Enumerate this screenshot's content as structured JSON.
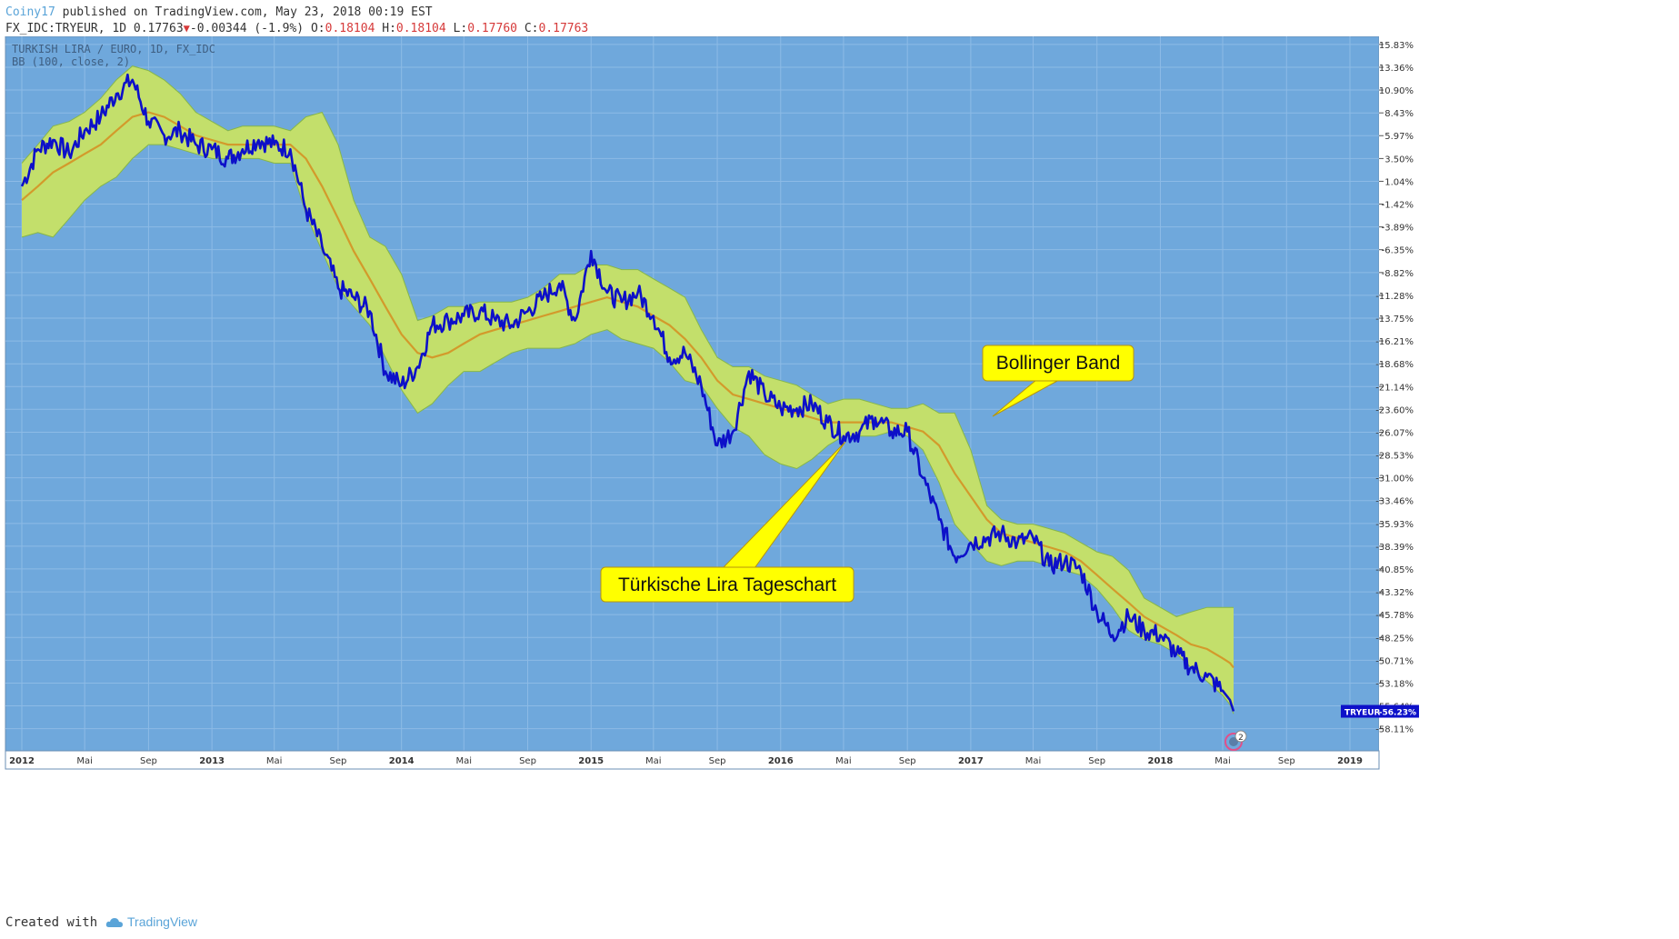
{
  "header": {
    "author": "Coiny17",
    "published_text": "published on TradingView.com, May 23, 2018 00:19 EST",
    "symbol_line": "FX_IDC:TRYEUR, 1D 0.17763",
    "change_text": "-0.00344 (-1.9%)",
    "open_label": "O:",
    "open_value": "0.18104",
    "high_label": "H:",
    "high_value": "0.18104",
    "low_label": "L:",
    "low_value": "0.17760",
    "close_label": "C:",
    "close_value": "0.17763"
  },
  "footer": {
    "created_with": "Created with",
    "brand": "TradingView"
  },
  "colors": {
    "plot_bg": "#6fa8dc",
    "band_fill": "#c3df6b",
    "band_edge": "#86b64a",
    "ma_line": "#d39a2b",
    "price_line": "#0d10c9",
    "grid": "#8dbbe6",
    "callout_fill": "#ffff00",
    "last_price_tag": "#0d10c9"
  },
  "chart_data": {
    "type": "line",
    "title": "TURKISH LIRA / EURO, 1D, FX_IDC",
    "indicator": "BB (100, close, 2)",
    "x_axis_ticks": [
      "2012",
      "Mai",
      "Sep",
      "2013",
      "Mai",
      "Sep",
      "2014",
      "Mai",
      "Sep",
      "2015",
      "Mai",
      "Sep",
      "2016",
      "Mai",
      "Sep",
      "2017",
      "Mai",
      "Sep",
      "2018",
      "Mai",
      "Sep",
      "2019"
    ],
    "y_axis_ticks": [
      "15.83%",
      "13.36%",
      "10.90%",
      "8.43%",
      "5.97%",
      "3.50%",
      "1.04%",
      "-1.42%",
      "-3.89%",
      "-6.35%",
      "-8.82%",
      "-11.28%",
      "-13.75%",
      "-16.21%",
      "-18.68%",
      "-21.14%",
      "-23.60%",
      "-26.07%",
      "-28.53%",
      "-31.00%",
      "-33.46%",
      "-35.93%",
      "-38.39%",
      "-40.85%",
      "-43.32%",
      "-45.78%",
      "-48.25%",
      "-50.71%",
      "-53.18%",
      "-55.64%",
      "-58.11%"
    ],
    "ylim": [
      -60.5,
      16.7
    ],
    "last_value_tag": {
      "label": "TRYEUR",
      "value": "-56.23%"
    },
    "annotations": [
      "Bollinger Band",
      "Türkische Lira Tageschart"
    ],
    "event_marker_count": "2",
    "series": [
      {
        "name": "TRYEUR",
        "x": [
          "2012-01-01",
          "2012-02-01",
          "2012-03-01",
          "2012-04-01",
          "2012-05-01",
          "2012-06-01",
          "2012-07-01",
          "2012-08-01",
          "2012-09-01",
          "2012-10-01",
          "2012-11-01",
          "2012-12-01",
          "2013-01-01",
          "2013-02-01",
          "2013-03-01",
          "2013-04-01",
          "2013-05-01",
          "2013-06-01",
          "2013-07-01",
          "2013-08-01",
          "2013-09-01",
          "2013-10-01",
          "2013-11-01",
          "2013-12-01",
          "2014-01-01",
          "2014-02-01",
          "2014-03-01",
          "2014-04-01",
          "2014-05-01",
          "2014-06-01",
          "2014-07-01",
          "2014-08-01",
          "2014-09-01",
          "2014-10-01",
          "2014-11-01",
          "2014-12-01",
          "2015-01-01",
          "2015-02-01",
          "2015-03-01",
          "2015-04-01",
          "2015-05-01",
          "2015-06-01",
          "2015-07-01",
          "2015-08-01",
          "2015-09-01",
          "2015-10-01",
          "2015-11-01",
          "2015-12-01",
          "2016-01-01",
          "2016-02-01",
          "2016-03-01",
          "2016-04-01",
          "2016-05-01",
          "2016-06-01",
          "2016-07-01",
          "2016-08-01",
          "2016-09-01",
          "2016-10-01",
          "2016-11-01",
          "2016-12-01",
          "2017-01-01",
          "2017-02-01",
          "2017-03-01",
          "2017-04-01",
          "2017-05-01",
          "2017-06-01",
          "2017-07-01",
          "2017-08-01",
          "2017-09-01",
          "2017-10-01",
          "2017-11-01",
          "2017-12-01",
          "2018-01-01",
          "2018-02-01",
          "2018-03-01",
          "2018-04-01",
          "2018-05-01",
          "2018-05-15",
          "2018-05-22"
        ],
        "values": [
          0.5,
          4.5,
          5.5,
          4.0,
          6.5,
          8.0,
          10.5,
          12.0,
          7.5,
          6.0,
          6.5,
          5.0,
          4.5,
          3.5,
          4.5,
          5.5,
          5.0,
          4.5,
          -2.0,
          -6.0,
          -10.5,
          -11.5,
          -13.0,
          -19.5,
          -21.0,
          -19.0,
          -14.5,
          -14.0,
          -13.5,
          -13.0,
          -14.0,
          -14.5,
          -13.0,
          -11.5,
          -10.0,
          -14.0,
          -6.5,
          -11.0,
          -12.0,
          -11.0,
          -13.5,
          -18.0,
          -17.5,
          -21.0,
          -27.5,
          -26.0,
          -19.5,
          -22.0,
          -23.5,
          -23.5,
          -23.0,
          -25.0,
          -26.5,
          -26.0,
          -24.5,
          -26.0,
          -26.0,
          -31.0,
          -35.5,
          -39.5,
          -38.0,
          -37.5,
          -37.0,
          -38.0,
          -37.5,
          -40.5,
          -40.0,
          -41.0,
          -45.5,
          -48.0,
          -46.0,
          -47.5,
          -48.0,
          -50.0,
          -51.5,
          -52.5,
          -54.0,
          -55.0,
          -56.23
        ]
      },
      {
        "name": "BB basis",
        "values": [
          -1.0,
          0.5,
          2.0,
          3.0,
          4.0,
          5.0,
          6.5,
          8.0,
          8.5,
          8.0,
          7.0,
          6.0,
          5.5,
          5.0,
          5.0,
          5.0,
          5.0,
          5.0,
          3.5,
          0.5,
          -3.0,
          -6.5,
          -9.5,
          -12.5,
          -15.5,
          -17.5,
          -18.0,
          -17.5,
          -16.5,
          -15.5,
          -15.0,
          -14.5,
          -14.0,
          -13.5,
          -13.0,
          -12.5,
          -12.0,
          -11.5,
          -12.0,
          -12.5,
          -13.5,
          -14.5,
          -16.0,
          -18.0,
          -20.5,
          -22.0,
          -22.5,
          -23.0,
          -23.5,
          -24.0,
          -24.5,
          -25.0,
          -25.0,
          -25.0,
          -25.0,
          -25.0,
          -25.5,
          -26.0,
          -27.5,
          -30.5,
          -33.0,
          -35.5,
          -37.0,
          -37.5,
          -38.0,
          -38.5,
          -39.0,
          -40.0,
          -41.5,
          -43.0,
          -44.5,
          -46.0,
          -47.0,
          -48.0,
          -49.0,
          -49.5,
          -50.5,
          -51.0,
          -51.5
        ]
      },
      {
        "name": "BB upper",
        "values": [
          3.0,
          5.0,
          7.0,
          7.5,
          8.5,
          10.0,
          12.0,
          13.5,
          13.0,
          12.0,
          10.5,
          8.5,
          7.5,
          6.5,
          7.0,
          7.0,
          7.0,
          6.5,
          8.0,
          8.5,
          5.0,
          -1.0,
          -5.0,
          -6.0,
          -9.0,
          -14.0,
          -13.5,
          -12.5,
          -12.5,
          -12.0,
          -12.0,
          -12.0,
          -11.5,
          -10.5,
          -9.0,
          -9.0,
          -8.0,
          -8.0,
          -8.5,
          -8.5,
          -9.5,
          -10.5,
          -11.5,
          -15.0,
          -18.0,
          -19.0,
          -19.0,
          -20.0,
          -20.5,
          -21.0,
          -22.0,
          -23.0,
          -22.5,
          -22.5,
          -23.0,
          -23.5,
          -23.5,
          -23.0,
          -24.0,
          -24.0,
          -28.0,
          -34.0,
          -35.5,
          -36.0,
          -36.0,
          -36.5,
          -37.0,
          -38.0,
          -39.0,
          -39.5,
          -41.0,
          -44.0,
          -45.0,
          -46.0,
          -45.5,
          -45.0,
          -45.0,
          -45.0,
          -45.0
        ]
      },
      {
        "name": "BB lower",
        "values": [
          -5.0,
          -4.5,
          -5.0,
          -3.0,
          -1.0,
          0.5,
          1.5,
          3.5,
          5.0,
          5.0,
          4.5,
          4.0,
          3.5,
          3.5,
          3.5,
          3.5,
          3.0,
          3.0,
          -2.5,
          -6.5,
          -10.5,
          -12.5,
          -14.5,
          -18.0,
          -21.5,
          -24.0,
          -23.0,
          -21.0,
          -19.5,
          -19.5,
          -18.5,
          -17.5,
          -17.0,
          -17.0,
          -17.0,
          -16.5,
          -15.5,
          -15.0,
          -16.0,
          -16.5,
          -17.0,
          -18.5,
          -20.5,
          -21.0,
          -23.5,
          -25.5,
          -26.5,
          -28.5,
          -29.5,
          -30.0,
          -29.0,
          -27.5,
          -26.5,
          -26.5,
          -26.5,
          -26.0,
          -26.5,
          -28.0,
          -31.5,
          -36.0,
          -38.0,
          -40.0,
          -40.5,
          -40.0,
          -40.0,
          -40.5,
          -41.0,
          -41.5,
          -43.0,
          -45.0,
          -47.5,
          -48.5,
          -49.0,
          -50.0,
          -51.5,
          -53.0,
          -54.5,
          -55.5,
          -56.5
        ]
      }
    ]
  }
}
